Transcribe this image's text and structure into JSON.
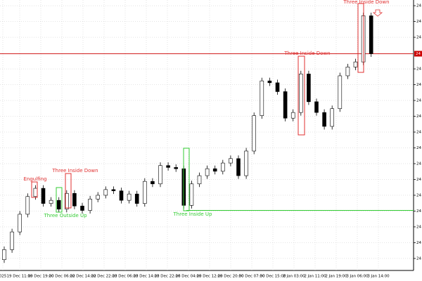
{
  "chart_data": {
    "type": "candlestick",
    "grid": true,
    "up_color": "#ffffff",
    "down_color": "#000000",
    "open": [
      24.078,
      24.094,
      24.122,
      24.15,
      24.178,
      24.191,
      24.167,
      24.172,
      24.158,
      24.183,
      24.163,
      24.156,
      24.174,
      24.18,
      24.189,
      24.187,
      24.172,
      24.182,
      24.167,
      24.202,
      24.198,
      24.227,
      24.224,
      24.222,
      24.164,
      24.198,
      24.211,
      24.222,
      24.218,
      24.231,
      24.238,
      24.211,
      24.25,
      24.306,
      24.361,
      24.358,
      24.344,
      24.302,
      24.311,
      24.372,
      24.328,
      24.311,
      24.289,
      24.317,
      24.369,
      24.383,
      24.391,
      24.464
    ],
    "high": [
      24.099,
      24.127,
      24.155,
      24.183,
      24.196,
      24.196,
      24.177,
      24.177,
      24.188,
      24.188,
      24.168,
      24.179,
      24.185,
      24.194,
      24.194,
      24.192,
      24.187,
      24.187,
      24.207,
      24.207,
      24.232,
      24.232,
      24.229,
      24.227,
      24.203,
      24.216,
      24.227,
      24.227,
      24.236,
      24.243,
      24.243,
      24.255,
      24.311,
      24.366,
      24.366,
      24.363,
      24.349,
      24.316,
      24.377,
      24.377,
      24.333,
      24.316,
      24.322,
      24.374,
      24.388,
      24.396,
      24.469,
      24.469
    ],
    "low": [
      24.073,
      24.089,
      24.117,
      24.145,
      24.173,
      24.162,
      24.162,
      24.153,
      24.153,
      24.158,
      24.151,
      24.151,
      24.169,
      24.175,
      24.182,
      24.167,
      24.167,
      24.162,
      24.162,
      24.193,
      24.193,
      24.219,
      24.217,
      24.159,
      24.159,
      24.193,
      24.206,
      24.213,
      24.213,
      24.226,
      24.206,
      24.206,
      24.245,
      24.301,
      24.353,
      24.339,
      24.297,
      24.297,
      24.306,
      24.323,
      24.306,
      24.284,
      24.284,
      24.312,
      24.364,
      24.378,
      24.386,
      24.399
    ],
    "close": [
      24.094,
      24.122,
      24.15,
      24.178,
      24.191,
      24.167,
      24.172,
      24.158,
      24.183,
      24.163,
      24.156,
      24.174,
      24.18,
      24.189,
      24.187,
      24.172,
      24.182,
      24.167,
      24.202,
      24.198,
      24.227,
      24.224,
      24.222,
      24.164,
      24.198,
      24.211,
      24.222,
      24.218,
      24.231,
      24.238,
      24.211,
      24.25,
      24.306,
      24.361,
      24.358,
      24.344,
      24.302,
      24.311,
      24.372,
      24.328,
      24.311,
      24.289,
      24.317,
      24.369,
      24.383,
      24.391,
      24.464,
      24.404
    ],
    "ylim": [
      24.061,
      24.489
    ],
    "yticks": [
      {
        "value": 24.48,
        "label": "24"
      },
      {
        "value": 24.455,
        "label": "24"
      },
      {
        "value": 24.43,
        "label": "24"
      },
      {
        "value": 24.38,
        "label": "24"
      },
      {
        "value": 24.355,
        "label": "24"
      },
      {
        "value": 24.33,
        "label": "24"
      },
      {
        "value": 24.305,
        "label": "24"
      },
      {
        "value": 24.28,
        "label": "24"
      },
      {
        "value": 24.255,
        "label": "24"
      },
      {
        "value": 24.23,
        "label": "24"
      },
      {
        "value": 24.205,
        "label": "24"
      },
      {
        "value": 24.18,
        "label": "24"
      },
      {
        "value": 24.155,
        "label": "24"
      },
      {
        "value": 24.13,
        "label": "24"
      },
      {
        "value": 24.105,
        "label": "24"
      },
      {
        "value": 24.08,
        "label": "24"
      }
    ],
    "price_line_color": "#cc0000",
    "price_label": "24",
    "level": {
      "value": 24.156,
      "color": "#33cc33"
    },
    "xlabels": [
      "025",
      "19 Dec 11:00",
      "19 Dec 19:00",
      "20 Dec 06:00",
      "22 Dec 14:00",
      "22 Dec 22:00",
      "23 Dec 06:00",
      "23 Dec 14:00",
      "23 Dec 22:00",
      "26 Dec 04:00",
      "29 Dec 12:00",
      "29 Dec 20:00",
      "30 Dec 07:00",
      "30 Dec 15:00",
      "2 Jan 03:00",
      "2 Jan 11:00",
      "2 Jan 19:00",
      "3 Jan 06:00",
      "3 Jan 14:00"
    ],
    "patterns": [
      {
        "label": "Engulfing",
        "color": "#e03030"
      },
      {
        "label": "Three Inside Down",
        "color": "#e03030"
      },
      {
        "label": "Three Outside Up",
        "color": "#33cc33"
      },
      {
        "label": "Three Inside Up",
        "color": "#33cc33"
      },
      {
        "label": "Three Inside Down",
        "color": "#e03030"
      },
      {
        "label": "Three Inside Down",
        "color": "#e03030"
      }
    ]
  }
}
